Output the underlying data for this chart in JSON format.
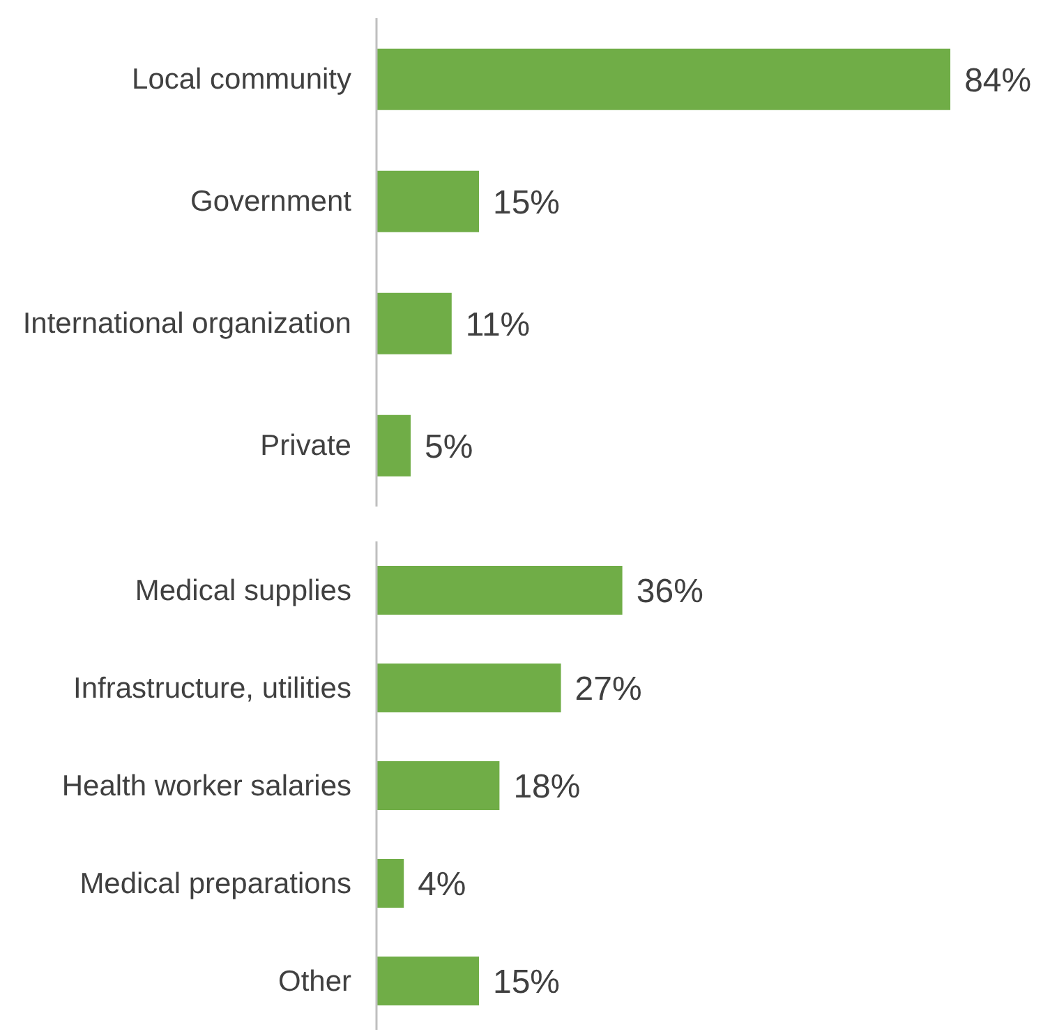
{
  "chart_data": [
    {
      "type": "bar",
      "orientation": "horizontal",
      "categories": [
        "Local community",
        "Government",
        "International organization",
        "Private"
      ],
      "values": [
        84,
        15,
        11,
        5
      ],
      "color": "#70ad47",
      "value_labels": [
        "84%",
        "15%",
        "11%",
        "5%"
      ],
      "grid": false,
      "legend": false
    },
    {
      "type": "bar",
      "orientation": "horizontal",
      "categories": [
        "Medical supplies",
        "Infrastructure, utilities",
        "Health worker salaries",
        "Medical preparations",
        "Other"
      ],
      "values": [
        36,
        27,
        18,
        4,
        15
      ],
      "color": "#70ad47",
      "value_labels": [
        "36%",
        "27%",
        "18%",
        "4%",
        "15%"
      ],
      "grid": false,
      "legend": false
    }
  ]
}
